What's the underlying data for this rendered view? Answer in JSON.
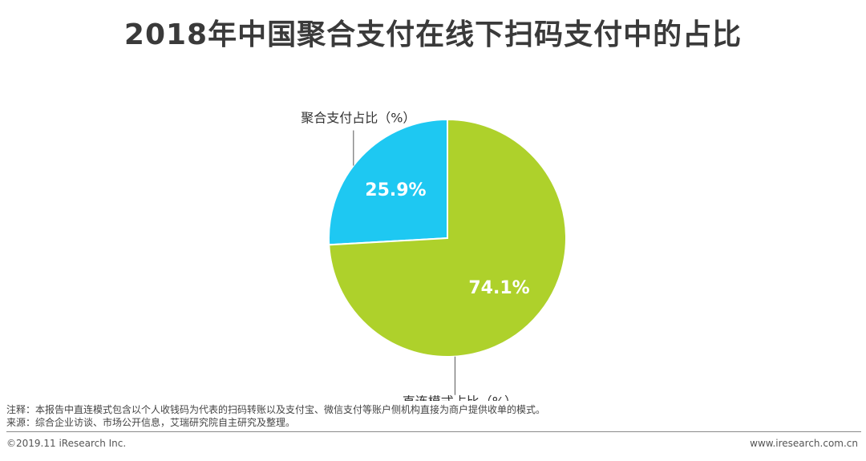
{
  "title": "2018年中国聚合支付在线下扫码支付中的占比",
  "chart_data": {
    "type": "pie",
    "title": "2018年中国聚合支付在线下扫码支付中的占比",
    "slices": [
      {
        "label": "聚合支付占比（%）",
        "value": 25.9,
        "display": "25.9%",
        "color": "#1ec8f2"
      },
      {
        "label": "直连模式占比（%）",
        "value": 74.1,
        "display": "74.1%",
        "color": "#aed12b"
      }
    ]
  },
  "notes": {
    "line1": "注释：本报告中直连模式包含以个人收钱码为代表的扫码转账以及支付宝、微信支付等账户侧机构直接为商户提供收单的模式。",
    "line2": "来源：综合企业访谈、市场公开信息，艾瑞研究院自主研究及整理。"
  },
  "footer": {
    "copyright": "©2019.11 iResearch Inc.",
    "website": "www.iresearch.com.cn"
  }
}
